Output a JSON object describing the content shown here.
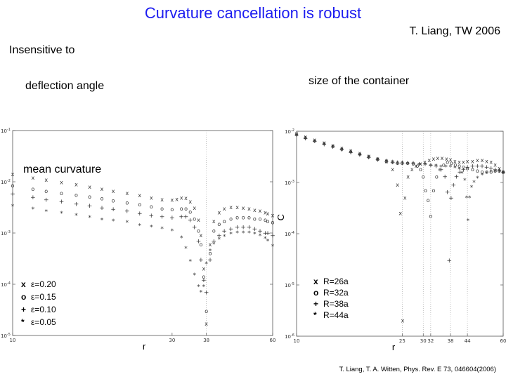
{
  "slide": {
    "title": "Curvature cancellation is robust",
    "author": "T. Liang, TW 2006",
    "text_insensitive": "Insensitive to",
    "text_deflection": "deflection angle",
    "text_size": "size of the container",
    "reference": "T. Liang, T. A. Witten, Phys. Rev. E 73, 046604(2006)"
  },
  "chart_data": [
    {
      "type": "scatter",
      "title": "",
      "overlay_label": "mean curvature",
      "xlabel": "r",
      "ylabel": "",
      "xscale": "log",
      "yscale": "log",
      "xlim": [
        10,
        60
      ],
      "ylim": [
        1e-05,
        0.1
      ],
      "x_ticks": [
        "10",
        "30",
        "38",
        "60"
      ],
      "y_ticks": [
        "10^-5",
        "10^-4",
        "10^-3",
        "10^-2",
        "10^-1"
      ],
      "vertical_guides": [
        38
      ],
      "legend_position": "bottom-left",
      "series": [
        {
          "name": "ε=0.20",
          "marker": "x",
          "label": "x",
          "x": [
            10,
            11.5,
            12.6,
            14,
            15.5,
            17,
            18.5,
            20,
            22,
            24,
            26,
            28,
            30,
            31,
            32,
            33,
            34,
            35,
            36,
            36.6,
            37.3,
            38,
            39,
            40,
            41.5,
            43,
            45,
            47,
            49,
            51,
            53,
            55,
            57,
            58,
            60
          ],
          "y": [
            0.014,
            0.012,
            0.0108,
            0.0097,
            0.0088,
            0.0079,
            0.0072,
            0.0066,
            0.006,
            0.0054,
            0.0049,
            0.0045,
            0.0044,
            0.0046,
            0.0049,
            0.0048,
            0.0041,
            0.0031,
            0.0018,
            0.0009,
            0.0002,
            1.7e-05,
            0.0006,
            0.0017,
            0.0025,
            0.003,
            0.0032,
            0.0032,
            0.0031,
            0.003,
            0.0028,
            0.0027,
            0.0025,
            0.0024,
            0.0022
          ]
        },
        {
          "name": "ε=0.15",
          "marker": "o",
          "label": "o",
          "x": [
            10,
            11.5,
            12.6,
            14,
            15.5,
            17,
            18.5,
            20,
            22,
            24,
            26,
            28,
            30,
            32,
            33,
            34,
            35,
            36,
            36.6,
            37.3,
            38,
            39,
            40,
            41.5,
            43,
            45,
            47,
            49,
            51,
            53,
            55,
            57,
            58,
            60
          ],
          "y": [
            0.0085,
            0.0072,
            0.0066,
            0.006,
            0.0055,
            0.0051,
            0.0047,
            0.0043,
            0.0039,
            0.0036,
            0.0033,
            0.003,
            0.0029,
            0.003,
            0.003,
            0.0026,
            0.0019,
            0.0011,
            0.0006,
            0.00014,
            3e-05,
            0.0004,
            0.0011,
            0.0015,
            0.0017,
            0.0019,
            0.002,
            0.002,
            0.002,
            0.0019,
            0.0019,
            0.0018,
            0.0017,
            0.0016
          ]
        },
        {
          "name": "ε=0.10",
          "marker": "+",
          "label": "+",
          "x": [
            10,
            11.5,
            12.6,
            14,
            15.5,
            17,
            18.5,
            20,
            22,
            24,
            26,
            28,
            30,
            32,
            33,
            34,
            35,
            36,
            36.6,
            37.3,
            38,
            39,
            40,
            41.5,
            43,
            45,
            47,
            49,
            51,
            53,
            55,
            57,
            58,
            60
          ],
          "y": [
            0.0058,
            0.005,
            0.0045,
            0.0041,
            0.0037,
            0.0034,
            0.0031,
            0.0029,
            0.0027,
            0.0024,
            0.0022,
            0.0021,
            0.002,
            0.0021,
            0.0021,
            0.0018,
            0.0013,
            0.0007,
            0.0003,
            0.00012,
            7e-05,
            0.0003,
            0.0007,
            0.0009,
            0.0011,
            0.0012,
            0.0013,
            0.0013,
            0.0013,
            0.0012,
            0.0011,
            0.001,
            0.001,
            0.0009
          ]
        },
        {
          "name": "ε=0.05",
          "marker": "*",
          "label": "*",
          "x": [
            10,
            11.5,
            12.6,
            14,
            15.5,
            17,
            18.5,
            20,
            22,
            24,
            26,
            28,
            30,
            32,
            33,
            34,
            35,
            36,
            36.6,
            37.3,
            38,
            39,
            40,
            41.5,
            43,
            45,
            47,
            49,
            51,
            53,
            55,
            57,
            58,
            60
          ],
          "y": [
            0.0033,
            0.0029,
            0.0026,
            0.0024,
            0.0022,
            0.002,
            0.0018,
            0.0017,
            0.0016,
            0.0014,
            0.0013,
            0.0012,
            0.0011,
            0.0008,
            0.0005,
            0.00028,
            0.00015,
            9e-05,
            7e-05,
            9e-05,
            0.00025,
            0.00045,
            0.0006,
            0.00075,
            0.00085,
            0.00095,
            0.001,
            0.001,
            0.001,
            0.00095,
            0.00088,
            0.00078,
            0.0007,
            0.00055
          ]
        }
      ]
    },
    {
      "type": "scatter",
      "title": "",
      "xlabel": "r",
      "ylabel": "C",
      "xscale": "log",
      "yscale": "log",
      "xlim": [
        10,
        60
      ],
      "ylim": [
        1e-06,
        0.01
      ],
      "x_ticks": [
        "10",
        "25",
        "30",
        "32",
        "38",
        "44",
        "60"
      ],
      "y_ticks": [
        "10^-6",
        "10^-5",
        "10^-4",
        "10^-3",
        "10^-2"
      ],
      "vertical_guides": [
        25,
        30,
        32,
        38,
        44
      ],
      "legend_position": "bottom-left",
      "series": [
        {
          "name": "R=26a",
          "marker": "x",
          "label": "x",
          "x": [
            10,
            10.8,
            11.7,
            12.7,
            13.7,
            14.8,
            16,
            17.3,
            18.7,
            20.2,
            21.8,
            23,
            24,
            24.6,
            25.1,
            25.6,
            26.3,
            27.2,
            28.2,
            29.3,
            30.4,
            31.6,
            32.8,
            34,
            35.3,
            36.7,
            38,
            39.5,
            41,
            42.5,
            44,
            46,
            48,
            50,
            52,
            54,
            56,
            58,
            60
          ],
          "y": [
            0.009,
            0.0078,
            0.0068,
            0.006,
            0.0053,
            0.0047,
            0.0042,
            0.0037,
            0.0033,
            0.0029,
            0.0026,
            0.0018,
            0.0009,
            0.00025,
            2e-06,
            0.0005,
            0.0013,
            0.0018,
            0.0021,
            0.0023,
            0.0025,
            0.0027,
            0.0029,
            0.003,
            0.003,
            0.0029,
            0.0028,
            0.0026,
            0.0025,
            0.0025,
            0.0026,
            0.0026,
            0.0027,
            0.0027,
            0.0026,
            0.0025,
            0.0022,
            0.0019,
            0.0016
          ]
        },
        {
          "name": "R=32a",
          "marker": "o",
          "label": "o",
          "x": [
            10,
            10.8,
            11.7,
            12.7,
            13.7,
            14.8,
            16,
            17.3,
            18.7,
            20.2,
            21.8,
            23,
            24,
            25,
            26.2,
            27.5,
            28.5,
            29.3,
            30,
            30.6,
            31.3,
            32,
            32.8,
            33.7,
            34.7,
            35.8,
            37,
            38.3,
            39.6,
            41,
            42.5,
            44,
            46,
            48,
            50,
            52,
            54,
            56,
            58,
            60
          ],
          "y": [
            0.0088,
            0.0076,
            0.0066,
            0.0058,
            0.0051,
            0.0045,
            0.004,
            0.0036,
            0.0032,
            0.0029,
            0.0026,
            0.0025,
            0.0024,
            0.0024,
            0.0024,
            0.0023,
            0.0021,
            0.0018,
            0.0013,
            0.0007,
            0.00045,
            0.00022,
            0.0007,
            0.0013,
            0.0018,
            0.0022,
            0.0025,
            0.0024,
            0.0022,
            0.0021,
            0.002,
            0.0019,
            0.0018,
            0.0017,
            0.0016,
            0.0016,
            0.0016,
            0.0017,
            0.0017,
            0.0016
          ]
        },
        {
          "name": "R=38a",
          "marker": "+",
          "label": "+",
          "x": [
            10,
            10.8,
            11.7,
            12.7,
            13.7,
            14.8,
            16,
            17.3,
            18.7,
            20.2,
            21.8,
            23,
            24,
            25,
            26.2,
            27.5,
            29,
            30.5,
            32,
            33.5,
            35,
            36.2,
            37,
            37.6,
            38.2,
            39,
            40,
            41.2,
            42.5,
            44,
            46,
            48,
            50,
            52,
            54,
            56,
            58,
            60
          ],
          "y": [
            0.0085,
            0.0073,
            0.0064,
            0.0056,
            0.005,
            0.0044,
            0.0039,
            0.0035,
            0.0031,
            0.0028,
            0.0026,
            0.0025,
            0.0024,
            0.0024,
            0.0024,
            0.0024,
            0.0023,
            0.0023,
            0.0022,
            0.0021,
            0.0018,
            0.0013,
            0.00065,
            3e-05,
            0.0005,
            0.0009,
            0.0013,
            0.0016,
            0.0018,
            0.002,
            0.0021,
            0.0021,
            0.0021,
            0.002,
            0.0019,
            0.0018,
            0.0017,
            0.0016
          ]
        },
        {
          "name": "R=44a",
          "marker": "*",
          "label": "*",
          "x": [
            10,
            10.8,
            11.7,
            12.7,
            13.7,
            14.8,
            16,
            17.3,
            18.7,
            20.2,
            21.8,
            23,
            24,
            25,
            26.2,
            27.5,
            29,
            30.5,
            32,
            33.5,
            35,
            36.5,
            38,
            39.5,
            41,
            42,
            43,
            43.7,
            44.2,
            44.8,
            45.6,
            46.6,
            48,
            50,
            52,
            54,
            56,
            58,
            60
          ],
          "y": [
            0.008,
            0.007,
            0.0062,
            0.0055,
            0.0049,
            0.0043,
            0.0038,
            0.0034,
            0.0031,
            0.0028,
            0.0026,
            0.0025,
            0.0024,
            0.0024,
            0.0023,
            0.0023,
            0.0022,
            0.0022,
            0.0021,
            0.0021,
            0.002,
            0.002,
            0.002,
            0.0019,
            0.0018,
            0.0015,
            0.0011,
            0.0005,
            0.00018,
            0.0005,
            0.0008,
            0.001,
            0.0012,
            0.0014,
            0.0015,
            0.0016,
            0.0016,
            0.0016,
            0.0015
          ]
        }
      ]
    }
  ]
}
